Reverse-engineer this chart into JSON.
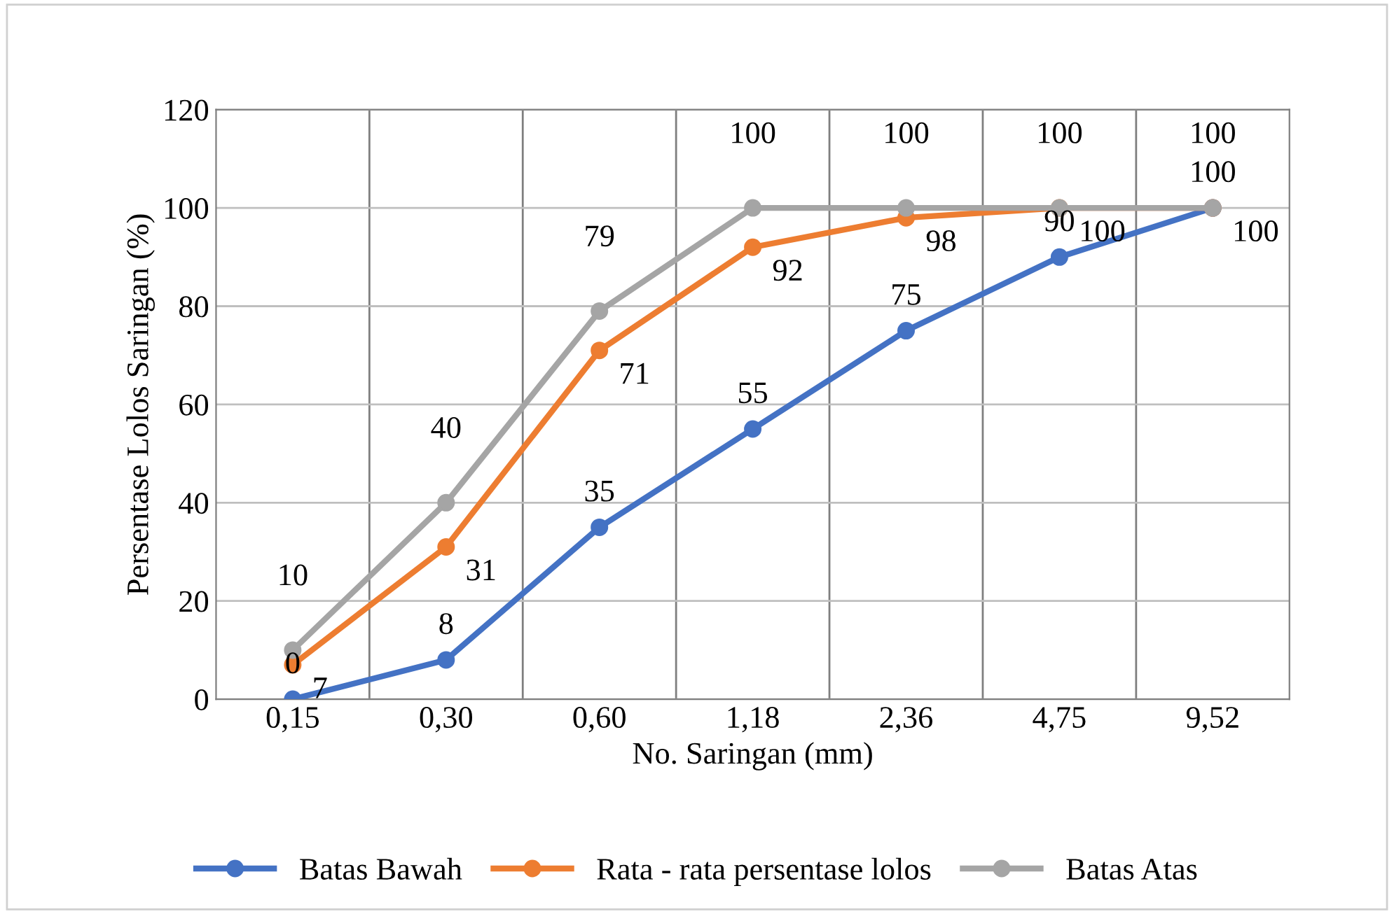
{
  "chart_data": {
    "type": "line",
    "xlabel": "No. Saringan (mm)",
    "ylabel": "Persentase Lolos Saringan (%)",
    "categories": [
      "0,15",
      "0,30",
      "0,60",
      "1,18",
      "2,36",
      "4,75",
      "9,52"
    ],
    "series": [
      {
        "name": "Batas Bawah",
        "color": "#4472c4",
        "values": [
          0,
          8,
          35,
          55,
          75,
          90,
          100
        ]
      },
      {
        "name": "Rata - rata persentase lolos",
        "color": "#ed7d31",
        "values": [
          7,
          31,
          71,
          92,
          98,
          100,
          100
        ]
      },
      {
        "name": "Batas Atas",
        "color": "#a5a5a5",
        "values": [
          10,
          40,
          79,
          100,
          100,
          100,
          100
        ]
      }
    ],
    "ylim": [
      0,
      120
    ],
    "yticks": [
      0,
      20,
      40,
      60,
      80,
      100,
      120
    ],
    "grid": true,
    "legend": "bottom",
    "marker": "circle",
    "line_style": "solid",
    "data_labels": true
  }
}
